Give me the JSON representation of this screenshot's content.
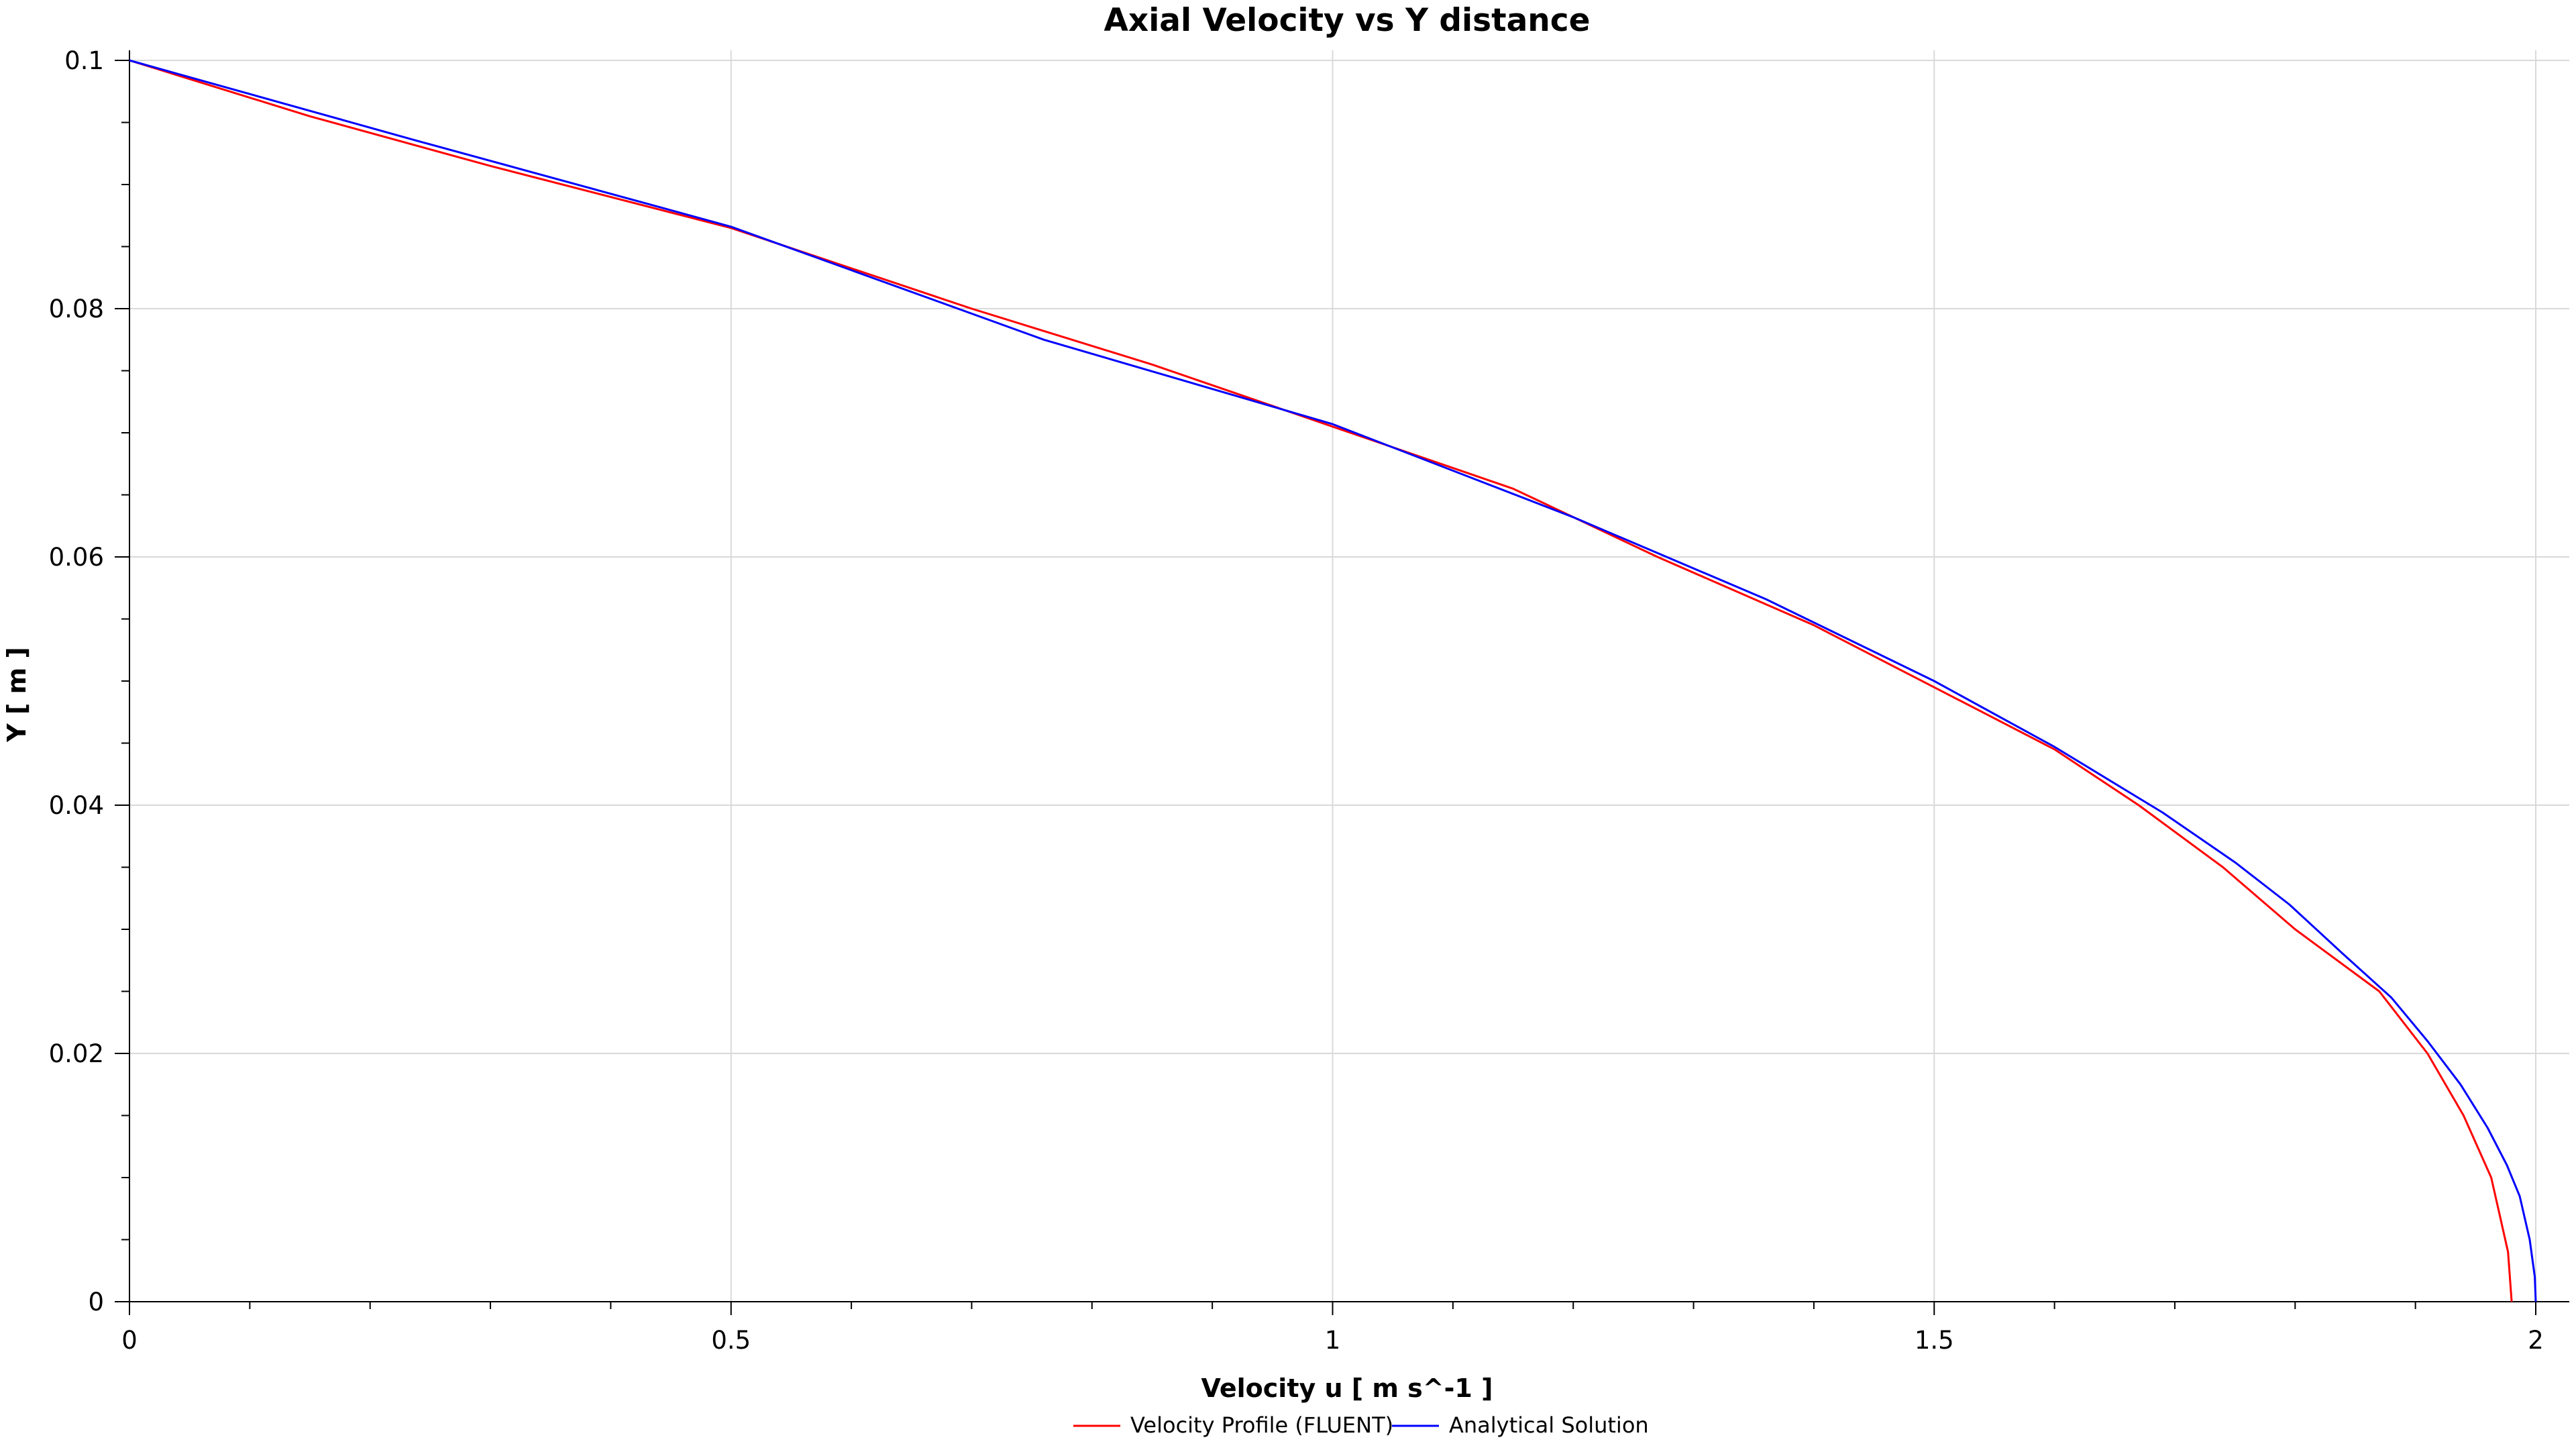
{
  "chart_data": {
    "type": "line",
    "title": "Axial Velocity vs Y distance",
    "xlabel": "Velocity u [ m s^-1 ]",
    "ylabel": "Y [ m ]",
    "xlim": [
      0,
      2
    ],
    "ylim": [
      0,
      0.1
    ],
    "x_ticks": [
      0,
      0.5,
      1,
      1.5,
      2
    ],
    "x_tick_labels": [
      "0",
      "0.5",
      "1",
      "1.5",
      "2"
    ],
    "y_ticks": [
      0,
      0.02,
      0.04,
      0.06,
      0.08,
      0.1
    ],
    "y_tick_labels": [
      "0",
      "0.02",
      "0.04",
      "0.06",
      "0.08",
      "0.1"
    ],
    "grid": true,
    "legend_position": "bottom-center",
    "series": [
      {
        "name": "Velocity Profile (FLUENT)",
        "color": "#ff0000",
        "x": [
          1.98,
          1.977,
          1.97,
          1.963,
          1.94,
          1.91,
          1.87,
          1.8,
          1.74,
          1.67,
          1.6,
          1.5,
          1.4,
          1.27,
          1.15,
          1.0,
          0.85,
          0.7,
          0.5,
          0.3,
          0.15,
          0.0
        ],
        "y": [
          0.0,
          0.004,
          0.007,
          0.01,
          0.015,
          0.02,
          0.025,
          0.03,
          0.035,
          0.04,
          0.0445,
          0.0495,
          0.0545,
          0.06,
          0.0655,
          0.0705,
          0.0755,
          0.08,
          0.0865,
          0.0915,
          0.0955,
          0.1
        ]
      },
      {
        "name": "Analytical Solution",
        "color": "#0000ff",
        "x": [
          2.0,
          1.9992,
          1.995,
          1.9867,
          1.976,
          1.96,
          1.9375,
          1.91,
          1.88,
          1.84,
          1.7952,
          1.75,
          1.69,
          1.6,
          1.5,
          1.36,
          1.2,
          1.0,
          0.76,
          0.5,
          0.24,
          0.0
        ],
        "y": [
          0.0,
          0.002,
          0.005,
          0.0085,
          0.011,
          0.014,
          0.0175,
          0.021,
          0.0245,
          0.028,
          0.032,
          0.0354,
          0.0394,
          0.0447,
          0.05,
          0.0566,
          0.0632,
          0.0707,
          0.0775,
          0.0866,
          0.0935,
          0.1
        ]
      }
    ]
  }
}
